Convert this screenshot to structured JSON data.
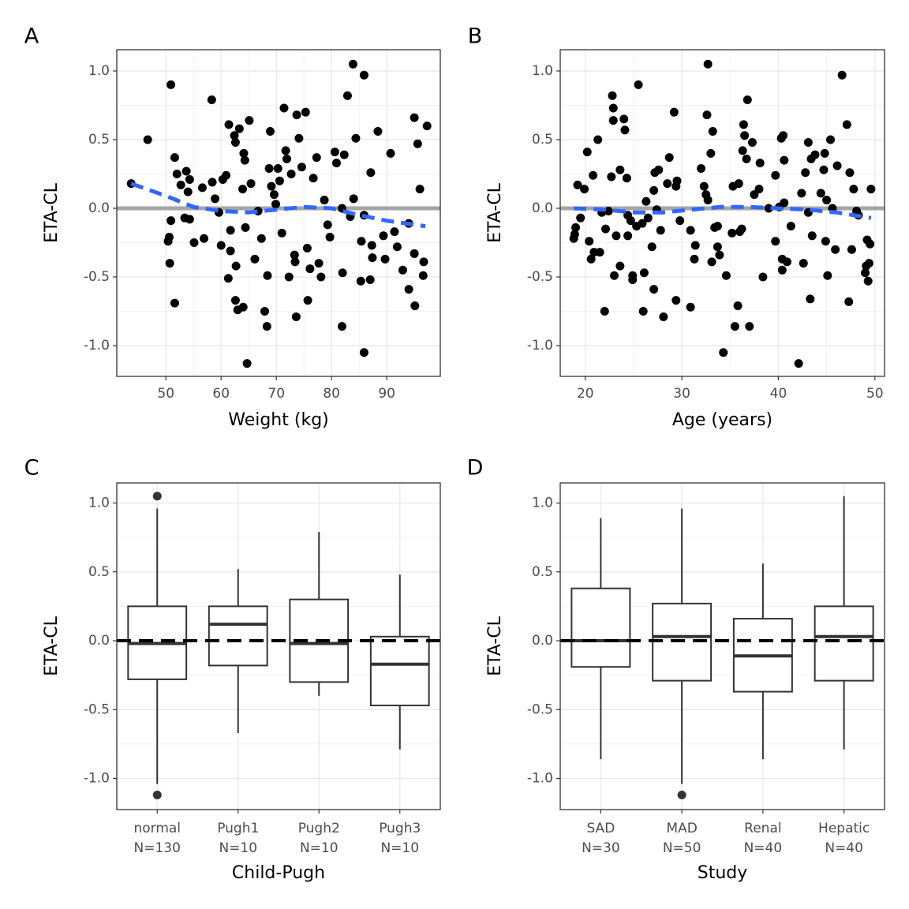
{
  "chart_data": [
    {
      "type": "scatter",
      "panel_label": "A",
      "xlabel": "Weight (kg)",
      "ylabel": "ETA-CL",
      "color": "#000000",
      "xlim": [
        41.1,
        99.7
      ],
      "xticks": [
        50,
        60,
        70,
        80,
        90
      ],
      "ylim": [
        -1.224,
        1.155
      ],
      "yticks": [
        {
          "value": -1,
          "label": "-1.0"
        },
        {
          "value": -0.5,
          "label": "-0.5"
        },
        {
          "value": 0,
          "label": "0.0"
        },
        {
          "value": 0.5,
          "label": "0.5"
        },
        {
          "value": 1,
          "label": "1.0"
        }
      ],
      "grid": true,
      "reference_line": {
        "value": 0,
        "color": "#a6a6a6"
      },
      "x": [
        43.7,
        46.7,
        50.9,
        51.6,
        52.0,
        52.7,
        53.7,
        54.3,
        54.0,
        50.9,
        50.6,
        50.4,
        50.7,
        51.6,
        53.4,
        54.3,
        55.1,
        56.9,
        56.6,
        58.3,
        58.4,
        58.9,
        59.6,
        60.0,
        60.3,
        60.9,
        61.4,
        61.7,
        61.3,
        61.7,
        62.4,
        62.6,
        62.7,
        62.6,
        63.0,
        63.3,
        63.9,
        64.1,
        64.3,
        64.4,
        64.0,
        64.7,
        65.1,
        65.4,
        66.1,
        66.7,
        67.3,
        67.9,
        68.3,
        68.4,
        68.9,
        68.7,
        69.1,
        69.6,
        69.9,
        70.3,
        70.6,
        71.0,
        71.4,
        71.7,
        71.9,
        72.3,
        72.7,
        73.3,
        73.4,
        73.6,
        73.7,
        74.1,
        74.6,
        75.3,
        75.6,
        75.7,
        76.1,
        76.7,
        77.3,
        77.7,
        78.1,
        78.7,
        79.3,
        79.7,
        80.6,
        80.9,
        81.9,
        81.9,
        82.0,
        82.3,
        82.9,
        83.4,
        83.9,
        84.0,
        84.4,
        85.4,
        85.3,
        85.9,
        85.9,
        85.9,
        87.1,
        87.3,
        87.4,
        87.0,
        88.4,
        89.4,
        89.7,
        90.7,
        91.4,
        91.9,
        92.9,
        94.0,
        94.0,
        95.0,
        95.0,
        95.1,
        95.6,
        96.0,
        96.7,
        96.6,
        97.3
      ],
      "values": [
        0.18,
        0.5,
        0.9,
        0.37,
        0.25,
        0.17,
        0.27,
        0.21,
        0.12,
        -0.09,
        -0.21,
        -0.24,
        -0.4,
        -0.69,
        -0.07,
        -0.08,
        -0.25,
        -0.22,
        0.15,
        0.79,
        0.19,
        0.07,
        -0.03,
        -0.27,
        0.21,
        0.24,
        0.61,
        -0.16,
        -0.51,
        -0.31,
        0.53,
        0.48,
        -0.42,
        -0.67,
        -0.74,
        0.58,
        0.14,
        0.4,
        0.35,
        -0.14,
        -0.72,
        -1.13,
        0.64,
        0.18,
        -0.37,
        -0.02,
        -0.22,
        -0.75,
        -0.86,
        -0.49,
        0.56,
        0.29,
        0.16,
        0.1,
        0.03,
        0.29,
        0.2,
        -0.18,
        0.73,
        0.42,
        0.36,
        -0.5,
        0.25,
        -0.34,
        -0.39,
        -0.79,
        0.68,
        0.51,
        0.3,
        0.7,
        -0.29,
        -0.67,
        -0.44,
        0.22,
        0.37,
        -0.4,
        -0.5,
        0.06,
        -0.12,
        -0.21,
        0.41,
        0.33,
        0.0,
        -0.86,
        -0.47,
        0.39,
        0.82,
        -0.06,
        1.05,
        0.07,
        0.51,
        -0.24,
        -0.53,
        0.97,
        -0.05,
        -1.05,
        0.26,
        -0.27,
        -0.36,
        -0.52,
        0.56,
        -0.2,
        -0.37,
        0.4,
        -0.17,
        -0.28,
        -0.45,
        -0.11,
        -0.59,
        0.66,
        -0.33,
        -0.71,
        0.47,
        0.14,
        -0.39,
        -0.49,
        0.6
      ],
      "trend": {
        "color": "#3366ff",
        "x": [
          43.7,
          50,
          55,
          60,
          65,
          70,
          75,
          80,
          85,
          90,
          97
        ],
        "values": [
          0.18,
          0.09,
          0.01,
          -0.02,
          -0.03,
          -0.01,
          0.01,
          0.0,
          -0.05,
          -0.09,
          -0.13
        ]
      }
    },
    {
      "type": "scatter",
      "panel_label": "B",
      "xlabel": "Age (years)",
      "ylabel": "ETA-CL",
      "color": "#000000",
      "xlim": [
        17.4,
        51.0
      ],
      "xticks": [
        20,
        30,
        40,
        50
      ],
      "ylim": [
        -1.224,
        1.155
      ],
      "yticks": [
        {
          "value": -1,
          "label": "-1.0"
        },
        {
          "value": -0.5,
          "label": "-0.5"
        },
        {
          "value": 0,
          "label": "0.0"
        },
        {
          "value": 0.5,
          "label": "0.5"
        },
        {
          "value": 1,
          "label": "1.0"
        }
      ],
      "grid": true,
      "reference_line": {
        "value": 0,
        "color": "#a6a6a6"
      },
      "x": [
        18.8,
        18.9,
        19.0,
        19.2,
        19.5,
        19.9,
        20.2,
        20.4,
        20.6,
        20.8,
        20.9,
        21.3,
        21.5,
        21.7,
        22.0,
        22.1,
        22.4,
        22.7,
        22.8,
        22.9,
        22.9,
        23.0,
        23.2,
        23.6,
        23.6,
        24.0,
        24.1,
        24.3,
        24.4,
        24.4,
        24.7,
        24.9,
        24.9,
        25.3,
        25.5,
        25.9,
        26.0,
        26.1,
        26.3,
        26.5,
        26.9,
        27.1,
        27.1,
        27.2,
        27.4,
        27.6,
        27.8,
        28.1,
        28.5,
        28.7,
        29.2,
        29.4,
        29.4,
        29.5,
        29.8,
        30.9,
        30.9,
        31.3,
        31.4,
        32.0,
        32.3,
        32.5,
        32.6,
        32.7,
        32.7,
        33.0,
        33.1,
        33.2,
        33.4,
        33.7,
        33.7,
        33.9,
        34.3,
        34.6,
        35.2,
        35.3,
        35.5,
        35.8,
        35.9,
        36.0,
        36.2,
        36.3,
        36.4,
        36.5,
        36.7,
        36.8,
        37.0,
        37.3,
        37.5,
        38.1,
        38.0,
        38.4,
        39.0,
        39.7,
        39.7,
        40.1,
        40.3,
        40.4,
        40.5,
        40.6,
        40.4,
        40.6,
        40.9,
        41.3,
        42.1,
        42.4,
        42.6,
        42.8,
        43.1,
        43.1,
        43.3,
        43.4,
        43.5,
        43.8,
        44.4,
        44.7,
        44.8,
        44.9,
        45.0,
        45.1,
        45.4,
        45.6,
        45.9,
        46.1,
        46.6,
        47.1,
        47.4,
        47.3,
        47.6,
        47.8,
        48.1,
        48.3,
        49.0,
        49.1,
        49.2,
        49.3,
        49.4,
        49.5,
        49.6
      ],
      "values": [
        -0.22,
        -0.19,
        -0.14,
        0.17,
        -0.07,
        0.14,
        0.41,
        -0.24,
        -0.37,
        0.24,
        -0.32,
        0.5,
        -0.32,
        -0.03,
        -0.75,
        -0.15,
        -0.02,
        0.23,
        0.82,
        0.73,
        0.64,
        -0.49,
        -0.2,
        0.28,
        -0.42,
        0.65,
        0.57,
        0.22,
        -0.05,
        -0.2,
        -0.09,
        -0.49,
        -0.52,
        -0.13,
        0.9,
        -0.11,
        -0.75,
        -0.47,
        0.05,
        -0.07,
        -0.28,
        0.13,
        -0.59,
        0.26,
        -0.01,
        0.28,
        -0.16,
        -0.79,
        0.18,
        0.37,
        0.7,
        0.16,
        -0.67,
        0.2,
        -0.09,
        -0.72,
        -0.16,
        -0.37,
        -0.27,
        0.29,
        0.16,
        0.1,
        0.68,
        1.05,
        0.06,
        0.4,
        -0.39,
        0.56,
        -0.14,
        -0.13,
        -0.28,
        -0.34,
        -1.05,
        -0.49,
        -0.18,
        0.16,
        -0.86,
        -0.71,
        0.18,
        -0.17,
        -0.15,
        0.42,
        0.61,
        0.53,
        0.36,
        0.79,
        -0.86,
        0.48,
        0.1,
        0.33,
        0.14,
        -0.5,
        0.0,
        -0.24,
        0.24,
        0.01,
        0.51,
        -0.37,
        0.53,
        0.35,
        -0.45,
        0.04,
        -0.39,
        -0.13,
        -1.13,
        0.11,
        -0.4,
        0.26,
        -0.03,
        0.48,
        -0.66,
        0.36,
        -0.2,
        0.39,
        0.11,
        0.28,
        0.4,
        -0.24,
        0.06,
        -0.49,
        0.5,
        0.0,
        -0.3,
        0.31,
        0.97,
        0.61,
        0.26,
        -0.68,
        -0.3,
        0.14,
        -0.02,
        -0.05,
        -0.47,
        -0.42,
        -0.23,
        -0.53,
        -0.4,
        -0.26,
        0.14
      ],
      "trend": {
        "color": "#3366ff",
        "x": [
          18.8,
          22,
          25,
          28,
          31,
          34,
          37,
          40,
          43,
          46,
          49.6
        ],
        "values": [
          0.0,
          -0.01,
          -0.03,
          -0.03,
          -0.01,
          0.01,
          0.01,
          0.0,
          -0.01,
          -0.03,
          -0.07
        ]
      }
    },
    {
      "type": "box",
      "panel_label": "C",
      "xlabel": "Child-Pugh",
      "ylabel": "ETA-CL",
      "color": "#333333",
      "categories": [
        "normal",
        "Pugh1",
        "Pugh2",
        "Pugh3"
      ],
      "n_labels": [
        "N=130",
        "N=10",
        "N=10",
        "N=10"
      ],
      "ylim": [
        -1.226,
        1.146
      ],
      "yticks": [
        {
          "value": -1,
          "label": "-1.0"
        },
        {
          "value": -0.5,
          "label": "-0.5"
        },
        {
          "value": 0,
          "label": "0.0"
        },
        {
          "value": 0.5,
          "label": "0.5"
        },
        {
          "value": 1,
          "label": "1.0"
        }
      ],
      "grid": true,
      "reference_line": {
        "value": 0,
        "color": "#000000"
      },
      "whisker_low": [
        -1.04,
        -0.67,
        -0.4,
        -0.79
      ],
      "q1": [
        -0.28,
        -0.18,
        -0.3,
        -0.47
      ],
      "median": [
        -0.02,
        0.12,
        -0.02,
        -0.17
      ],
      "q3": [
        0.25,
        0.25,
        0.3,
        0.03
      ],
      "whisker_high": [
        0.96,
        0.52,
        0.79,
        0.48
      ],
      "outliers": [
        [
          1.05,
          -1.12
        ],
        [],
        [],
        []
      ]
    },
    {
      "type": "box",
      "panel_label": "D",
      "xlabel": "Study",
      "ylabel": "ETA-CL",
      "color": "#333333",
      "categories": [
        "SAD",
        "MAD",
        "Renal",
        "Hepatic"
      ],
      "n_labels": [
        "N=30",
        "N=50",
        "N=40",
        "N=40"
      ],
      "ylim": [
        -1.226,
        1.146
      ],
      "yticks": [
        {
          "value": -1,
          "label": "-1.0"
        },
        {
          "value": -0.5,
          "label": "-0.5"
        },
        {
          "value": 0,
          "label": "0.0"
        },
        {
          "value": 0.5,
          "label": "0.5"
        },
        {
          "value": 1,
          "label": "1.0"
        }
      ],
      "grid": true,
      "reference_line": {
        "value": 0,
        "color": "#000000"
      },
      "whisker_low": [
        -0.86,
        -1.04,
        -0.86,
        -0.79
      ],
      "q1": [
        -0.19,
        -0.29,
        -0.37,
        -0.29
      ],
      "median": [
        0.0,
        0.03,
        -0.11,
        0.03
      ],
      "q3": [
        0.38,
        0.27,
        0.16,
        0.25
      ],
      "whisker_high": [
        0.89,
        0.96,
        0.56,
        1.05
      ],
      "outliers": [
        [],
        [
          -1.12
        ],
        [],
        []
      ]
    }
  ]
}
